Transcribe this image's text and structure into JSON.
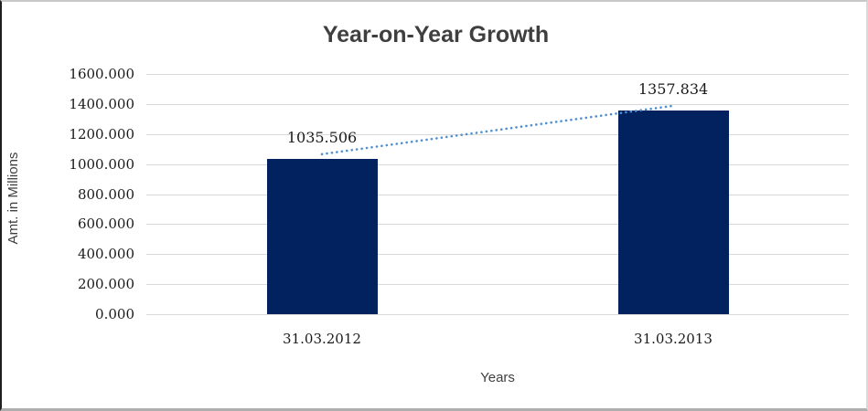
{
  "chart_data": {
    "type": "bar",
    "title": "Year-on-Year Growth",
    "xlabel": "Years",
    "ylabel": "Amt. in Millions",
    "categories": [
      "31.03.2012",
      "31.03.2013"
    ],
    "values": [
      1035.506,
      1357.834
    ],
    "value_labels": [
      "1035.506",
      "1357.834"
    ],
    "y_tick_labels": [
      "0.000",
      "200.000",
      "400.000",
      "600.000",
      "800.000",
      "1000.000",
      "1200.000",
      "1400.000",
      "1600.000"
    ],
    "y_tick_values": [
      0,
      200,
      400,
      600,
      800,
      1000,
      1200,
      1400,
      1600
    ],
    "ylim": [
      0,
      1600
    ],
    "grid": true,
    "legend": "none",
    "has_trendline": true,
    "colors": {
      "bar": "#02215f",
      "trendline": "#4e8fd2",
      "gridline": "#d9d9d9",
      "title_text": "#3f3f3f",
      "axis_title_text": "#404040",
      "tick_text": "#1a1a1a",
      "background": "#ffffff"
    }
  }
}
